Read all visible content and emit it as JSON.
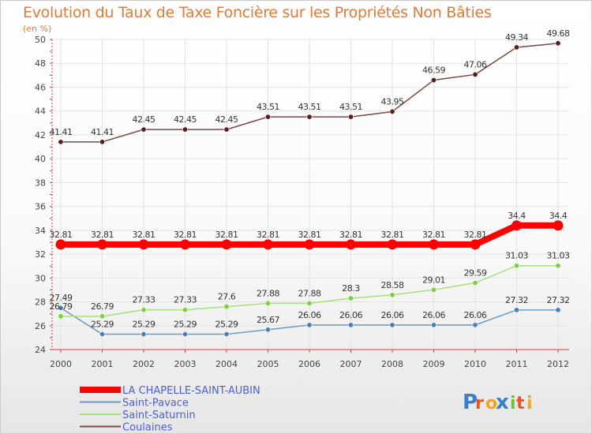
{
  "title": "Evolution du Taux de Taxe Foncière sur les Propriétés Non Bâties",
  "unit_label": "(en %)",
  "logo_text": "Proxiti",
  "chart_data": {
    "type": "line",
    "title": "Evolution du Taux de Taxe Foncière sur les Propriétés Non Bâties",
    "xlabel": "",
    "ylabel": "(en %)",
    "ylim": [
      24,
      50
    ],
    "yticks": [
      24,
      26,
      28,
      30,
      32,
      34,
      36,
      38,
      40,
      42,
      44,
      46,
      48,
      50
    ],
    "categories": [
      "2000",
      "2001",
      "2002",
      "2003",
      "2004",
      "2005",
      "2006",
      "2007",
      "2008",
      "2009",
      "2010",
      "2011",
      "2012"
    ],
    "series": [
      {
        "name": "LA CHAPELLE-SAINT-AUBIN",
        "color": "#ff0000",
        "marker_color": "#ff0000",
        "values": [
          32.81,
          32.81,
          32.81,
          32.81,
          32.81,
          32.81,
          32.81,
          32.81,
          32.81,
          32.81,
          32.81,
          34.4,
          34.4
        ],
        "labels": [
          "32.81",
          "32.81",
          "32.81",
          "32.81",
          "32.81",
          "32.81",
          "32.81",
          "32.81",
          "32.81",
          "32.81",
          "32.81",
          "34.4",
          "34.4"
        ]
      },
      {
        "name": "Saint-Pavace",
        "color": "#6d9bc4",
        "marker_color": "#4a7fb5",
        "values": [
          27.49,
          25.29,
          25.29,
          25.29,
          25.29,
          25.67,
          26.06,
          26.06,
          26.06,
          26.06,
          26.06,
          27.32,
          27.32
        ],
        "labels": [
          "27.49",
          "25.29",
          "25.29",
          "25.29",
          "25.29",
          "25.67",
          "26.06",
          "26.06",
          "26.06",
          "26.06",
          "26.06",
          "27.32",
          "27.32"
        ]
      },
      {
        "name": "Saint-Saturnin",
        "color": "#a8e07a",
        "marker_color": "#7ccf3e",
        "values": [
          26.79,
          26.79,
          27.33,
          27.33,
          27.6,
          27.88,
          27.88,
          28.3,
          28.58,
          29.01,
          29.59,
          31.03,
          31.03
        ],
        "labels": [
          "26.79",
          "26.79",
          "27.33",
          "27.33",
          "27.6",
          "27.88",
          "27.88",
          "28.3",
          "28.58",
          "29.01",
          "29.59",
          "31.03",
          "31.03"
        ]
      },
      {
        "name": "Coulaines",
        "color": "#7a4848",
        "marker_color": "#5a1e1e",
        "values": [
          41.41,
          41.41,
          42.45,
          42.45,
          42.45,
          43.51,
          43.51,
          43.51,
          43.95,
          46.59,
          47.06,
          49.34,
          49.68
        ],
        "labels": [
          "41.41",
          "41.41",
          "42.45",
          "42.45",
          "42.45",
          "43.51",
          "43.51",
          "43.51",
          "43.95",
          "46.59",
          "47.06",
          "49.34",
          "49.68"
        ]
      }
    ]
  }
}
